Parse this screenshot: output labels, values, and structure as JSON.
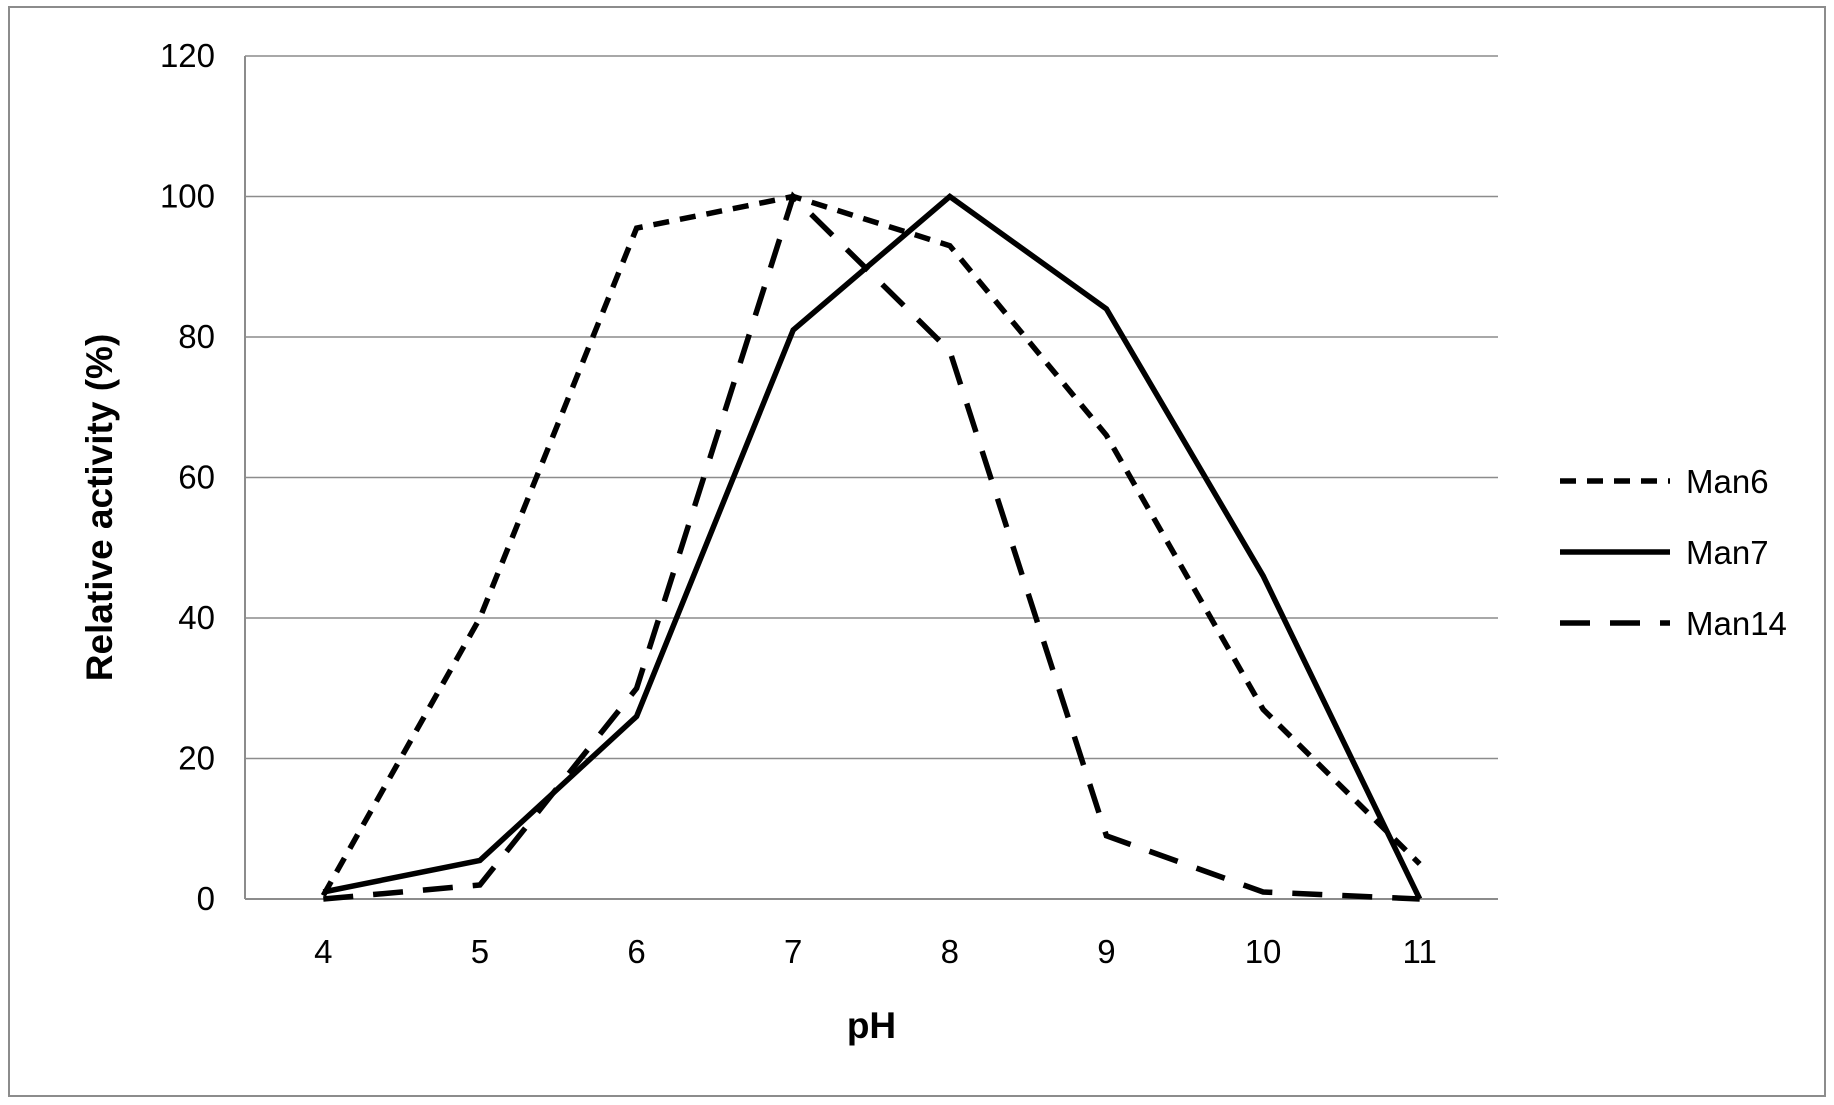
{
  "chart_data": {
    "type": "line",
    "title": "",
    "xlabel": "pH",
    "ylabel": "Relative activity (%)",
    "x": [
      4,
      5,
      6,
      7,
      8,
      9,
      10,
      11
    ],
    "xlim": [
      4,
      11
    ],
    "ylim": [
      0,
      120
    ],
    "yticks": [
      0,
      20,
      40,
      60,
      80,
      100,
      120
    ],
    "grid": "horizontal",
    "legend_position": "right",
    "series": [
      {
        "name": "Man6",
        "style": "short-dash",
        "color": "#000000",
        "values": [
          0.5,
          40,
          95.5,
          100,
          93,
          66,
          27,
          5
        ]
      },
      {
        "name": "Man7",
        "style": "solid",
        "color": "#000000",
        "values": [
          1,
          5.5,
          26,
          81,
          100,
          84,
          46,
          0
        ]
      },
      {
        "name": "Man14",
        "style": "long-dash",
        "color": "#000000",
        "values": [
          0,
          2,
          30,
          100,
          78,
          9,
          1,
          0
        ]
      }
    ]
  }
}
